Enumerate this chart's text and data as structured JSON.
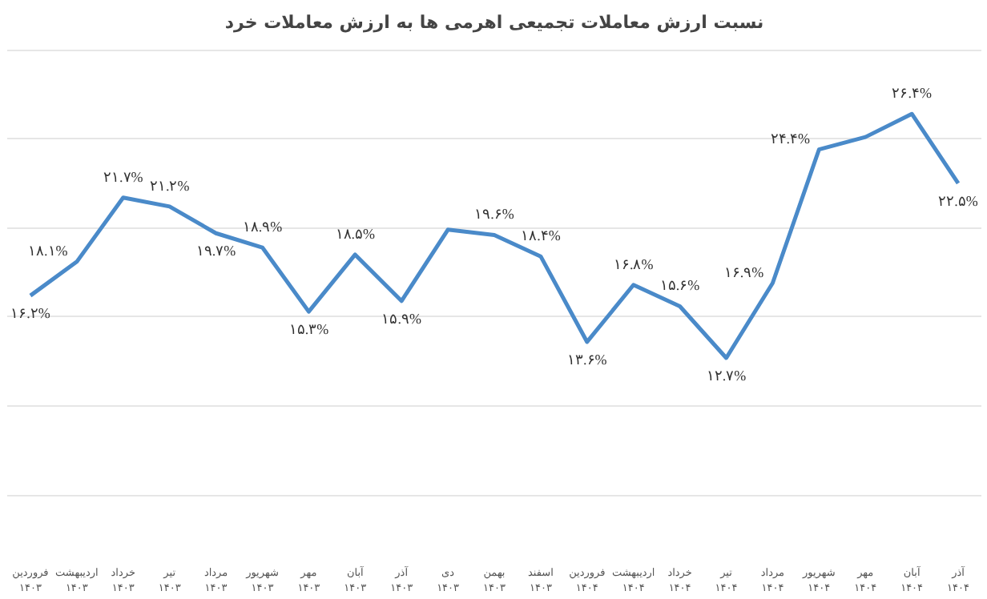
{
  "chart_data": {
    "type": "line",
    "title": "نسبت ارزش معاملات تجمیعی اهرمی ها به ارزش معاملات خرد",
    "categories": [
      "فروردین ۱۴۰۳",
      "اردیبهشت ۱۴۰۳",
      "خرداد ۱۴۰۳",
      "تیر ۱۴۰۳",
      "مرداد ۱۴۰۳",
      "شهریور ۱۴۰۳",
      "مهر ۱۴۰۳",
      "آبان ۱۴۰۳",
      "آذر ۱۴۰۳",
      "دی ۱۴۰۳",
      "بهمن ۱۴۰۳",
      "اسفند ۱۴۰۳",
      "فروردین ۱۴۰۴",
      "اردیبهشت ۱۴۰۴",
      "خرداد ۱۴۰۴",
      "تیر ۱۴۰۴",
      "مرداد ۱۴۰۴",
      "شهریور ۱۴۰۴",
      "مهر ۱۴۰۴",
      "آبان ۱۴۰۴",
      "آذر ۱۴۰۴"
    ],
    "series": [
      {
        "color": "#4a8ac9",
        "values": [
          16.2,
          18.1,
          21.7,
          21.2,
          19.7,
          18.9,
          15.3,
          18.5,
          15.9,
          19.9,
          19.6,
          18.4,
          13.6,
          16.8,
          15.6,
          12.7,
          16.9,
          24.4,
          25.1,
          26.4,
          22.5
        ],
        "value_labels": [
          "۱۶.۲%",
          "۱۸.۱%",
          "۲۱.۷%",
          "۲۱.۲%",
          "۱۹.۷%",
          "۱۸.۹%",
          "۱۵.۳%",
          "۱۸.۵%",
          "۱۵.۹%",
          null,
          "۱۹.۶%",
          "۱۸.۴%",
          "۱۳.۶%",
          "۱۶.۸%",
          "۱۵.۶%",
          "۱۲.۷%",
          "۱۶.۹%",
          "۲۴.۴%",
          null,
          "۲۶.۴%",
          "۲۲.۵%"
        ]
      }
    ],
    "yticks": [
      {
        "value": 5,
        "label": null
      },
      {
        "value": 10,
        "label": null
      },
      {
        "value": 15,
        "label": null
      },
      {
        "value": 20,
        "label": null
      },
      {
        "value": 25,
        "label": null
      },
      {
        "value": 30,
        "label": null
      }
    ],
    "grid": "y",
    "tick_labels": "x",
    "marker": "none",
    "line_style": "solid"
  }
}
